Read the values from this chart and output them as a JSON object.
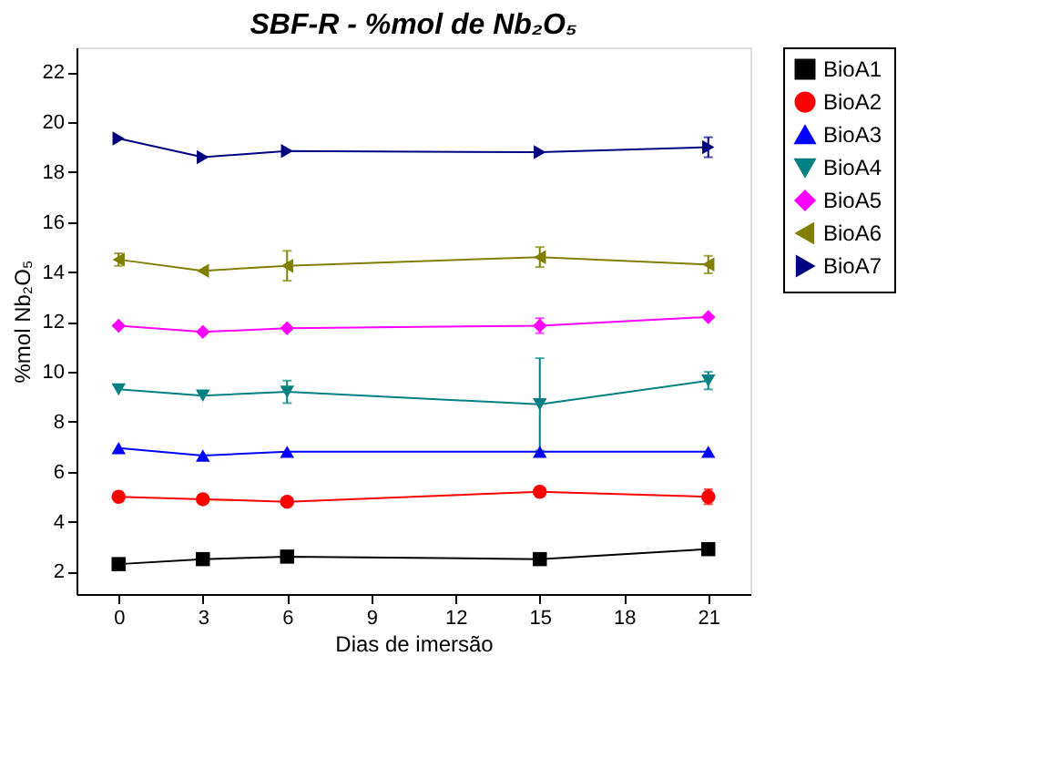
{
  "chart_data": {
    "type": "line",
    "title": "SBF-R - %mol de Nb₂O₅",
    "xlabel": "Dias de imersão",
    "ylabel": "%mol Nb₂O₅",
    "x": [
      0,
      3,
      6,
      15,
      21
    ],
    "xlim": [
      -1.5,
      22.5
    ],
    "xticks": [
      0,
      3,
      6,
      9,
      12,
      15,
      18,
      21
    ],
    "ylim": [
      1.1,
      23
    ],
    "yticks": [
      2,
      4,
      6,
      8,
      10,
      12,
      14,
      16,
      18,
      20,
      22
    ],
    "series": [
      {
        "name": "BioA1",
        "color": "#000000",
        "marker": "square",
        "values": [
          2.3,
          2.5,
          2.6,
          2.5,
          2.9
        ]
      },
      {
        "name": "BioA2",
        "color": "#ff0000",
        "marker": "circle",
        "values": [
          5.0,
          4.9,
          4.8,
          5.2,
          5.0
        ],
        "errors": [
          null,
          null,
          null,
          null,
          0.3
        ]
      },
      {
        "name": "BioA3",
        "color": "#0000ff",
        "marker": "triangle-up",
        "values": [
          6.95,
          6.65,
          6.8,
          6.8,
          6.8
        ]
      },
      {
        "name": "BioA4",
        "color": "#008080",
        "marker": "triangle-down",
        "values": [
          9.3,
          9.05,
          9.2,
          8.7,
          9.65
        ],
        "errors": [
          null,
          null,
          0.45,
          1.85,
          0.35
        ]
      },
      {
        "name": "BioA5",
        "color": "#ff00ff",
        "marker": "diamond",
        "values": [
          11.85,
          11.6,
          11.75,
          11.85,
          12.2
        ],
        "errors": [
          null,
          null,
          null,
          0.3,
          null
        ]
      },
      {
        "name": "BioA6",
        "color": "#808000",
        "marker": "triangle-left",
        "values": [
          14.5,
          14.05,
          14.25,
          14.6,
          14.3
        ],
        "errors": [
          0.25,
          null,
          0.6,
          0.4,
          0.35
        ]
      },
      {
        "name": "BioA7",
        "color": "#000080",
        "marker": "triangle-right",
        "values": [
          19.35,
          18.6,
          18.85,
          18.8,
          19.0
        ],
        "errors": [
          null,
          null,
          null,
          null,
          0.4
        ]
      }
    ],
    "legend": "right",
    "grid": false
  }
}
